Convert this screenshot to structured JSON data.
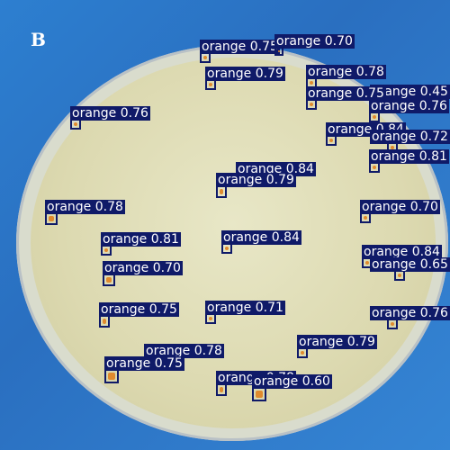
{
  "panel": {
    "letter": "B"
  },
  "colors": {
    "background": "#2a74c8",
    "agar": "#ddd9b2",
    "box": "#0f1a68",
    "colony": "#e08a2e",
    "label_text": "#ffffff"
  },
  "detections": [
    {
      "label": "orange",
      "score": "0.75"
    },
    {
      "label": "orange",
      "score": "0.70"
    },
    {
      "label": "orange",
      "score": "0.79"
    },
    {
      "label": "orange",
      "score": "0.78"
    },
    {
      "label": "orange",
      "score": "0.45"
    },
    {
      "label": "orange",
      "score": "0.75"
    },
    {
      "label": "orange",
      "score": "0.76"
    },
    {
      "label": "orange",
      "score": "0.76"
    },
    {
      "label": "orange",
      "score": "0.84"
    },
    {
      "label": "orange",
      "score": "0.72"
    },
    {
      "label": "orange",
      "score": "0.81"
    },
    {
      "label": "orange",
      "score": "0.84"
    },
    {
      "label": "orange",
      "score": "0.79"
    },
    {
      "label": "orange",
      "score": "0.70"
    },
    {
      "label": "orange",
      "score": "0.78"
    },
    {
      "label": "orange",
      "score": "0.81"
    },
    {
      "label": "orange",
      "score": "0.84"
    },
    {
      "label": "orange",
      "score": "0.84"
    },
    {
      "label": "orange",
      "score": "0.70"
    },
    {
      "label": "orange",
      "score": "0.65"
    },
    {
      "label": "orange",
      "score": "0.75"
    },
    {
      "label": "orange",
      "score": "0.71"
    },
    {
      "label": "orange",
      "score": "0.76"
    },
    {
      "label": "orange",
      "score": "0.79"
    },
    {
      "label": "orange",
      "score": "0.78"
    },
    {
      "label": "orange",
      "score": "0.75"
    },
    {
      "label": "orange",
      "score": "0.78"
    },
    {
      "label": "orange",
      "score": "0.60"
    }
  ]
}
